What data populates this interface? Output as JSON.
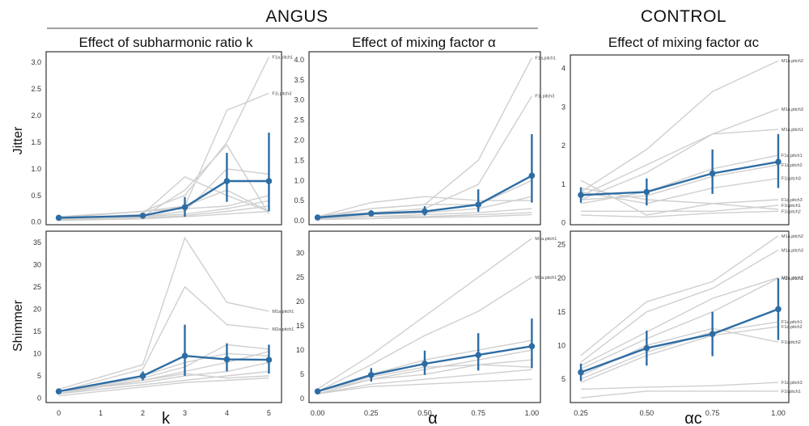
{
  "group_titles": {
    "angus": "ANGUS",
    "control": "CONTROL"
  },
  "row_labels": {
    "jitter": "Jitter",
    "shimmer": "Shimmer"
  },
  "colors": {
    "mean_line": "#2e6da4",
    "individual_lines": "#cfcfcf",
    "frame": "#333333"
  },
  "chart_data": [
    {
      "id": "jitter_k",
      "type": "line",
      "title": "Effect of subharmonic ratio k",
      "xlabel": "",
      "ylabel": "Jitter",
      "xlim": [
        -0.3,
        5.3
      ],
      "ylim": [
        -0.05,
        3.2
      ],
      "xticks": [
        0,
        1,
        2,
        3,
        4,
        5
      ],
      "yticks": [
        0.0,
        0.5,
        1.0,
        1.5,
        2.0,
        2.5,
        3.0
      ],
      "x": [
        0,
        2,
        3,
        4,
        5
      ],
      "mean": [
        0.08,
        0.12,
        0.28,
        0.77,
        0.77
      ],
      "err_low": [
        0.06,
        0.08,
        0.1,
        0.38,
        0.2
      ],
      "err_high": [
        0.1,
        0.17,
        0.47,
        1.3,
        1.68
      ],
      "series": [
        {
          "name": "F1a.pitch1",
          "values": [
            0.1,
            0.2,
            0.5,
            1.5,
            3.1
          ]
        },
        {
          "name": "F1i.pitch3",
          "values": [
            0.1,
            0.2,
            0.3,
            2.1,
            2.42
          ]
        },
        {
          "values": [
            0.05,
            0.15,
            0.85,
            0.5,
            0.2
          ]
        },
        {
          "values": [
            0.05,
            0.1,
            0.6,
            1.45,
            0.15
          ]
        },
        {
          "values": [
            0.08,
            0.2,
            0.25,
            0.3,
            0.5
          ]
        },
        {
          "values": [
            0.05,
            0.1,
            0.15,
            0.25,
            0.4
          ]
        },
        {
          "values": [
            0.05,
            0.1,
            0.2,
            1.0,
            0.9
          ]
        },
        {
          "values": [
            0.04,
            0.08,
            0.12,
            0.2,
            0.3
          ]
        },
        {
          "values": [
            0.06,
            0.12,
            0.3,
            0.6,
            0.2
          ]
        },
        {
          "values": [
            0.03,
            0.06,
            0.1,
            0.15,
            0.2
          ]
        }
      ]
    },
    {
      "id": "jitter_alpha",
      "type": "line",
      "title": "Effect of mixing factor α",
      "xlabel": "",
      "ylabel": "",
      "xlim": [
        -0.04,
        1.04
      ],
      "ylim": [
        -0.1,
        4.2
      ],
      "xticks": [],
      "yticks": [
        0.0,
        0.5,
        1.0,
        1.5,
        2.0,
        2.5,
        3.0,
        3.5,
        4.0
      ],
      "x": [
        0,
        0.25,
        0.5,
        0.75,
        1.0
      ],
      "mean": [
        0.08,
        0.18,
        0.23,
        0.4,
        1.12
      ],
      "err_low": [
        0.05,
        0.12,
        0.13,
        0.22,
        0.45
      ],
      "err_high": [
        0.11,
        0.26,
        0.36,
        0.78,
        2.15
      ],
      "series": [
        {
          "name": "F1a.pitch1",
          "values": [
            0.1,
            0.3,
            0.4,
            1.5,
            4.05
          ]
        },
        {
          "name": "F1i.pitch3",
          "values": [
            0.1,
            0.2,
            0.3,
            0.9,
            3.1
          ]
        },
        {
          "values": [
            0.1,
            0.45,
            0.6,
            0.5,
            0.5
          ]
        },
        {
          "values": [
            0.05,
            0.3,
            0.4,
            0.4,
            1.0
          ]
        },
        {
          "values": [
            0.05,
            0.15,
            0.2,
            0.3,
            0.6
          ]
        },
        {
          "values": [
            0.05,
            0.1,
            0.15,
            0.2,
            0.3
          ]
        },
        {
          "values": [
            0.05,
            0.1,
            0.1,
            0.15,
            0.2
          ]
        },
        {
          "values": [
            0.03,
            0.05,
            0.08,
            0.1,
            0.15
          ]
        }
      ]
    },
    {
      "id": "jitter_control",
      "type": "line",
      "title": "Effect of mixing factor αc",
      "xlabel": "",
      "ylabel": "",
      "xlim": [
        0.21,
        1.04
      ],
      "ylim": [
        -0.05,
        4.35
      ],
      "xticks": [],
      "yticks": [
        0,
        1,
        2,
        3,
        4
      ],
      "x": [
        0.25,
        0.5,
        0.75,
        1.0
      ],
      "mean": [
        0.72,
        0.8,
        1.28,
        1.58
      ],
      "err_low": [
        0.52,
        0.45,
        0.75,
        0.9
      ],
      "err_high": [
        0.92,
        1.15,
        1.9,
        2.3
      ],
      "series": [
        {
          "name": "M1a.pitch2",
          "values": [
            0.8,
            1.9,
            3.4,
            4.2
          ]
        },
        {
          "name": "M1a.pitch3",
          "values": [
            0.7,
            1.5,
            2.3,
            2.95
          ]
        },
        {
          "name": "M1a.pitch1",
          "values": [
            0.6,
            1.3,
            2.3,
            2.42
          ]
        },
        {
          "name": "F1a.pitch1",
          "values": [
            0.5,
            0.8,
            1.4,
            1.75
          ]
        },
        {
          "name": "F1a.pitch2",
          "values": [
            0.6,
            0.7,
            1.2,
            1.5
          ]
        },
        {
          "name": "F1i.pitch3",
          "values": [
            0.8,
            0.5,
            0.9,
            1.15
          ]
        },
        {
          "name": "F1a.pitch3",
          "values": [
            1.1,
            0.2,
            0.5,
            0.6
          ]
        },
        {
          "name": "F1i.pitch1",
          "values": [
            0.3,
            0.3,
            0.3,
            0.45
          ]
        },
        {
          "name": "F1i.pitch2",
          "values": [
            0.2,
            0.15,
            0.25,
            0.3
          ]
        },
        {
          "values": [
            0.9,
            0.6,
            0.5,
            0.35
          ]
        }
      ]
    },
    {
      "id": "shimmer_k",
      "type": "line",
      "title": "",
      "xlabel": "k",
      "ylabel": "Shimmer",
      "xlim": [
        -0.3,
        5.3
      ],
      "ylim": [
        -1,
        37.5
      ],
      "xticks": [
        0,
        1,
        2,
        3,
        4,
        5
      ],
      "yticks": [
        0,
        5,
        10,
        15,
        20,
        25,
        30,
        35
      ],
      "x": [
        0,
        2,
        3,
        4,
        5
      ],
      "mean": [
        1.5,
        5.0,
        9.5,
        8.7,
        8.6
      ],
      "err_low": [
        1.0,
        4.0,
        5.0,
        6.0,
        5.5
      ],
      "err_high": [
        2.0,
        6.0,
        16.5,
        12.3,
        12.0
      ],
      "series": [
        {
          "name": "M1a.pitch1",
          "values": [
            2.0,
            7.5,
            36.0,
            21.5,
            19.5
          ]
        },
        {
          "name": "M2a.pitch1",
          "values": [
            1.5,
            6.5,
            25.0,
            16.5,
            15.5
          ]
        },
        {
          "values": [
            1.5,
            4.5,
            7.0,
            12.0,
            11.0
          ]
        },
        {
          "values": [
            1.0,
            4.0,
            6.0,
            8.0,
            10.5
          ]
        },
        {
          "values": [
            1.5,
            3.5,
            5.0,
            6.0,
            8.0
          ]
        },
        {
          "values": [
            1.0,
            3.0,
            4.0,
            5.0,
            6.0
          ]
        },
        {
          "values": [
            0.5,
            2.5,
            3.5,
            4.0,
            4.5
          ]
        },
        {
          "values": [
            1.0,
            5.0,
            8.0,
            10.0,
            9.5
          ]
        },
        {
          "values": [
            1.5,
            4.0,
            5.5,
            4.5,
            5.0
          ]
        }
      ]
    },
    {
      "id": "shimmer_alpha",
      "type": "line",
      "title": "",
      "xlabel": "α",
      "ylabel": "",
      "xlim": [
        -0.04,
        1.04
      ],
      "ylim": [
        -0.8,
        34.5
      ],
      "xticks": [
        0.0,
        0.25,
        0.5,
        0.75,
        1.0
      ],
      "yticks": [
        0,
        5,
        10,
        15,
        20,
        25,
        30
      ],
      "x": [
        0,
        0.25,
        0.5,
        0.75,
        1.0
      ],
      "mean": [
        1.5,
        4.9,
        7.2,
        9.0,
        10.8
      ],
      "err_low": [
        1.0,
        3.5,
        4.9,
        5.8,
        6.3
      ],
      "err_high": [
        2.0,
        6.3,
        9.9,
        13.5,
        16.5
      ],
      "series": [
        {
          "name": "M1a.pitch1",
          "values": [
            2.0,
            9.0,
            17.0,
            25.0,
            33.0
          ]
        },
        {
          "name": "M2a.pitch1",
          "values": [
            1.5,
            7.0,
            13.0,
            18.0,
            25.0
          ]
        },
        {
          "values": [
            1.5,
            5.0,
            8.0,
            10.0,
            12.0
          ]
        },
        {
          "values": [
            1.0,
            4.0,
            6.0,
            8.0,
            10.0
          ]
        },
        {
          "values": [
            1.5,
            4.0,
            5.0,
            7.0,
            8.0
          ]
        },
        {
          "values": [
            1.0,
            3.0,
            4.0,
            5.0,
            6.0
          ]
        },
        {
          "values": [
            1.0,
            2.5,
            3.0,
            3.5,
            4.0
          ]
        },
        {
          "values": [
            1.5,
            4.5,
            6.5,
            7.0,
            6.5
          ]
        }
      ]
    },
    {
      "id": "shimmer_control",
      "type": "line",
      "title": "",
      "xlabel": "αc",
      "ylabel": "",
      "xlim": [
        0.21,
        1.04
      ],
      "ylim": [
        1.5,
        27.0
      ],
      "xticks": [
        0.25,
        0.5,
        0.75,
        1.0
      ],
      "yticks": [
        5,
        10,
        15,
        20,
        25
      ],
      "x": [
        0.25,
        0.5,
        0.75,
        1.0
      ],
      "mean": [
        6.0,
        9.6,
        11.7,
        15.4
      ],
      "err_low": [
        4.7,
        7.0,
        8.4,
        10.8
      ],
      "err_high": [
        7.3,
        12.2,
        15.0,
        20.0
      ],
      "series": [
        {
          "name": "M1a.pitch2",
          "values": [
            8.5,
            16.5,
            19.5,
            26.3
          ]
        },
        {
          "name": "M1a.pitch3",
          "values": [
            7.5,
            15.0,
            18.5,
            24.2
          ]
        },
        {
          "name": "M2a.pitch2",
          "values": [
            7.0,
            12.0,
            17.0,
            20.1
          ]
        },
        {
          "name": "M2a.pitch1",
          "values": [
            6.5,
            11.0,
            15.0,
            20.0
          ]
        },
        {
          "name": "F1a.pitch1",
          "values": [
            5.0,
            9.0,
            12.0,
            13.5
          ]
        },
        {
          "name": "F1a.pitch2",
          "values": [
            4.5,
            8.5,
            11.5,
            12.8
          ]
        },
        {
          "name": "F1i.pitch2",
          "values": [
            5.5,
            10.0,
            12.5,
            10.5
          ]
        },
        {
          "name": "F1a.pitch3",
          "values": [
            3.5,
            3.8,
            4.0,
            4.5
          ]
        },
        {
          "name": "F1i.pitch1",
          "values": [
            2.2,
            3.2,
            3.2,
            3.2
          ]
        }
      ]
    }
  ]
}
